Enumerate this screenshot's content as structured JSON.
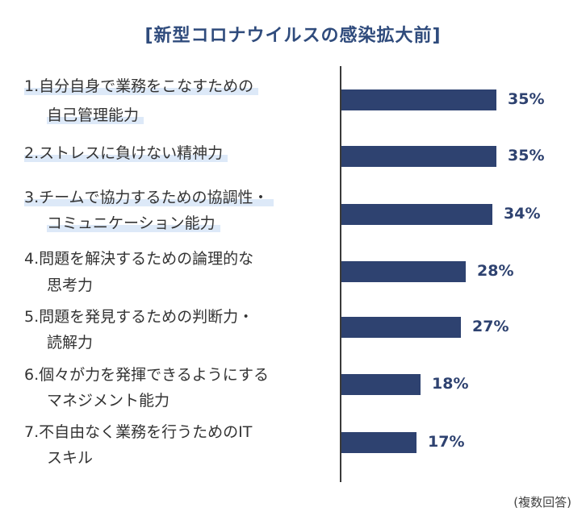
{
  "chart_data": {
    "type": "bar",
    "title": "[新型コロナウイルスの感染拡大前]",
    "note": "(複数回答)",
    "ylim": [
      0,
      50
    ],
    "categories": [
      "1.自分自身で業務をこなすための自己管理能力",
      "2.ストレスに負けない精神力",
      "3.チームで協力するための協調性・コミュニケーション能力",
      "4.問題を解決するための論理的な思考力",
      "5.問題を発見するための判断力・読解力",
      "6.個々が力を発揮できるようにするマネジメント能力",
      "7.不自由なく業務を行うためのITスキル"
    ],
    "items": [
      {
        "lines": [
          "1.自分自身で業務をこなすための",
          "自己管理能力"
        ],
        "value": 35,
        "label": "35%",
        "highlight": true
      },
      {
        "lines": [
          "2.ストレスに負けない精神力"
        ],
        "value": 35,
        "label": "35%",
        "highlight": true
      },
      {
        "lines": [
          "3.チームで協力するための協調性・",
          "コミュニケーション能力"
        ],
        "value": 34,
        "label": "34%",
        "highlight": true
      },
      {
        "lines": [
          "4.問題を解決するための論理的な",
          "思考力"
        ],
        "value": 28,
        "label": "28%",
        "highlight": false
      },
      {
        "lines": [
          "5.問題を発見するための判断力・",
          "読解力"
        ],
        "value": 27,
        "label": "27%",
        "highlight": false
      },
      {
        "lines": [
          "6.個々が力を発揮できるようにする",
          "マネジメント能力"
        ],
        "value": 18,
        "label": "18%",
        "highlight": false
      },
      {
        "lines": [
          "7.不自由なく業務を行うためのIT",
          "スキル"
        ],
        "value": 17,
        "label": "17%",
        "highlight": false
      }
    ],
    "colors": {
      "bar": "#2e4270",
      "title": "#2f4b7c",
      "highlight": "#dde9f8"
    }
  }
}
